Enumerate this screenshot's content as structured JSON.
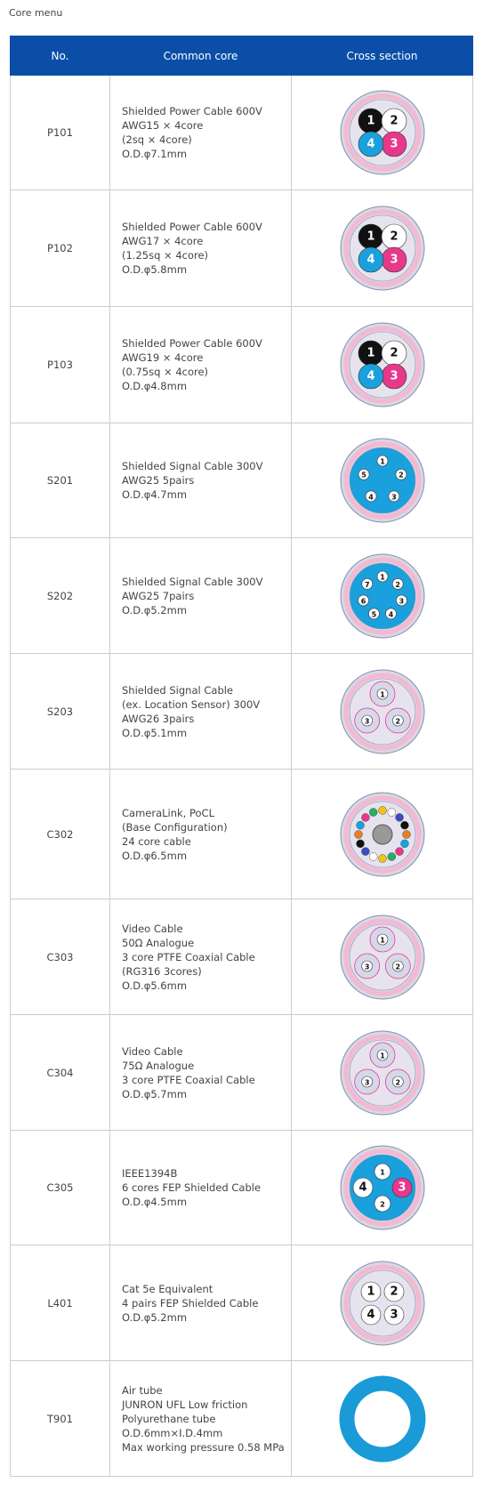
{
  "title": "Core menu",
  "table": {
    "headers": [
      "No.",
      "Common core",
      "Cross section"
    ],
    "rows": [
      {
        "no": "P101",
        "lines": [
          "Shielded Power Cable 600V",
          "AWG15 × 4core",
          "(2sq × 4core)",
          "O.D.φ7.1mm"
        ],
        "cores": [
          {
            "label": "1",
            "color": "#111111"
          },
          {
            "label": "2",
            "color": "#ffffff"
          },
          {
            "label": "3",
            "color": "#e8388a"
          },
          {
            "label": "4",
            "color": "#1aa0dc"
          }
        ],
        "layout": "grid"
      },
      {
        "no": "P102",
        "lines": [
          "Shielded Power Cable 600V",
          "AWG17 × 4core",
          "(1.25sq × 4core)",
          "O.D.φ5.8mm"
        ],
        "cores": [
          {
            "label": "1",
            "color": "#111111"
          },
          {
            "label": "2",
            "color": "#ffffff"
          },
          {
            "label": "3",
            "color": "#e8388a"
          },
          {
            "label": "4",
            "color": "#1aa0dc"
          }
        ],
        "layout": "grid"
      },
      {
        "no": "P103",
        "lines": [
          "Shielded Power Cable 600V",
          "AWG19 × 4core",
          "(0.75sq × 4core)",
          "O.D.φ4.8mm"
        ],
        "cores": [
          {
            "label": "1",
            "color": "#111111"
          },
          {
            "label": "2",
            "color": "#ffffff"
          },
          {
            "label": "3",
            "color": "#e8388a"
          },
          {
            "label": "4",
            "color": "#1aa0dc"
          }
        ],
        "layout": "grid"
      },
      {
        "no": "S201",
        "lines": [
          "Shielded Signal Cable 300V",
          "AWG25 5pairs",
          "O.D.φ4.7mm"
        ],
        "cores": [
          {
            "label": "1"
          },
          {
            "label": "2"
          },
          {
            "label": "3"
          },
          {
            "label": "4"
          },
          {
            "label": "5"
          }
        ],
        "layout": "ring"
      },
      {
        "no": "S202",
        "lines": [
          "Shielded Signal Cable 300V",
          "AWG25 7pairs",
          "O.D.φ5.2mm"
        ],
        "cores": [
          {
            "label": "1"
          },
          {
            "label": "2"
          },
          {
            "label": "3"
          },
          {
            "label": "4"
          },
          {
            "label": "5"
          },
          {
            "label": "6"
          },
          {
            "label": "7"
          }
        ],
        "layout": "ring"
      },
      {
        "no": "S203",
        "lines": [
          "Shielded Signal Cable",
          "(ex. Location Sensor) 300V",
          "AWG26 3pairs",
          "O.D.φ5.1mm"
        ],
        "cores": [
          {
            "label": "1"
          },
          {
            "label": "2"
          },
          {
            "label": "3"
          }
        ],
        "layout": "triad"
      },
      {
        "no": "C302",
        "lines": [
          "CameraLink, PoCL",
          "(Base Configuration)",
          "24 core cable",
          "O.D.φ6.5mm"
        ],
        "layout": "many"
      },
      {
        "no": "C303",
        "lines": [
          "Video Cable",
          "50Ω Analogue",
          "3 core PTFE Coaxial Cable",
          "(RG316 3cores)",
          "O.D.φ5.6mm"
        ],
        "cores": [
          {
            "label": "1"
          },
          {
            "label": "2"
          },
          {
            "label": "3"
          }
        ],
        "layout": "triad"
      },
      {
        "no": "C304",
        "lines": [
          "Video Cable",
          "75Ω Analogue",
          "3 core PTFE Coaxial Cable",
          "O.D.φ5.7mm"
        ],
        "cores": [
          {
            "label": "1"
          },
          {
            "label": "2"
          },
          {
            "label": "3"
          }
        ],
        "layout": "triad"
      },
      {
        "no": "C305",
        "lines": [
          "IEEE1394B",
          "6 cores FEP Shielded Cable",
          "O.D.φ4.5mm"
        ],
        "cores": [
          {
            "label": "1"
          },
          {
            "label": "2"
          },
          {
            "label": "3",
            "color": "#e8388a"
          },
          {
            "label": "4"
          }
        ],
        "layout": "cross"
      },
      {
        "no": "L401",
        "lines": [
          "Cat 5e Equivalent",
          "4 pairs FEP Shielded Cable",
          "O.D.φ5.2mm"
        ],
        "cores": [
          {
            "label": "1"
          },
          {
            "label": "2"
          },
          {
            "label": "3"
          },
          {
            "label": "4"
          }
        ],
        "layout": "grid"
      },
      {
        "no": "T901",
        "lines": [
          "Air tube",
          "JUNRON UFL Low friction",
          "Polyurethane tube",
          "O.D.6mm×I.D.4mm",
          "Max working pressure 0.58 MPa"
        ],
        "layout": "tube"
      }
    ]
  }
}
